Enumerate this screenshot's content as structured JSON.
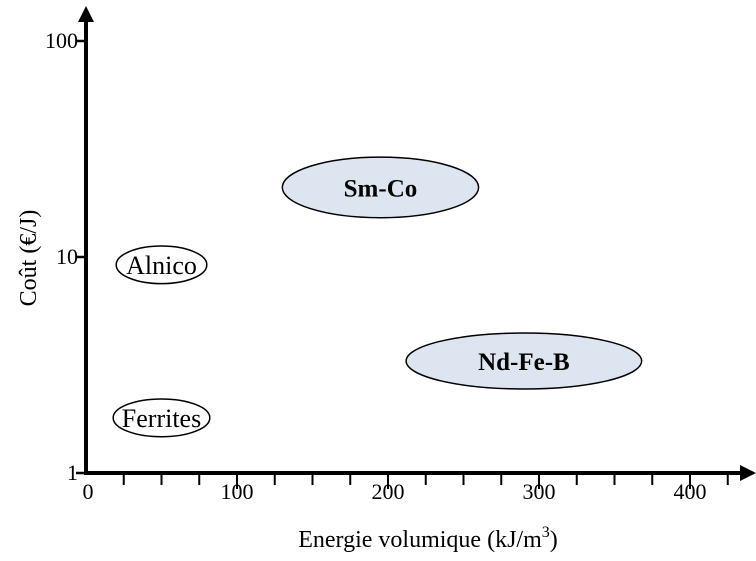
{
  "chart_data": {
    "type": "scatter",
    "title": "",
    "xlabel": "Energie volumique (kJ/m",
    "xlabel_sup": "3",
    "xlabel_suffix": ")",
    "ylabel": "Coût (€/J)",
    "x_ticks": [
      "0",
      "100",
      "200",
      "300",
      "400"
    ],
    "y_ticks": [
      "1",
      "10",
      "100"
    ],
    "xlim": [
      0,
      440
    ],
    "ylim": [
      1,
      100
    ],
    "yscale": "log",
    "grid": false,
    "regions": [
      {
        "label": "Alnico",
        "x": 50,
        "y": 9.2,
        "x_half_width": 30,
        "y_range": [
          7.5,
          11.2
        ],
        "highlighted": false,
        "bold": false
      },
      {
        "label": "Ferrites",
        "x": 50,
        "y": 1.8,
        "x_half_width": 32,
        "y_range": [
          1.47,
          2.2
        ],
        "highlighted": false,
        "bold": false
      },
      {
        "label": "Sm-Co",
        "x": 195,
        "y": 21,
        "x_half_width": 65,
        "y_range": [
          15.2,
          29
        ],
        "highlighted": true,
        "bold": true
      },
      {
        "label": "Nd-Fe-B",
        "x": 290,
        "y": 3.3,
        "x_half_width": 78,
        "y_range": [
          2.45,
          4.45
        ],
        "highlighted": true,
        "bold": true
      }
    ],
    "colors": {
      "axis": "#000000",
      "highlight_fill": "#dde6f0",
      "plain_fill": "#ffffff"
    }
  }
}
